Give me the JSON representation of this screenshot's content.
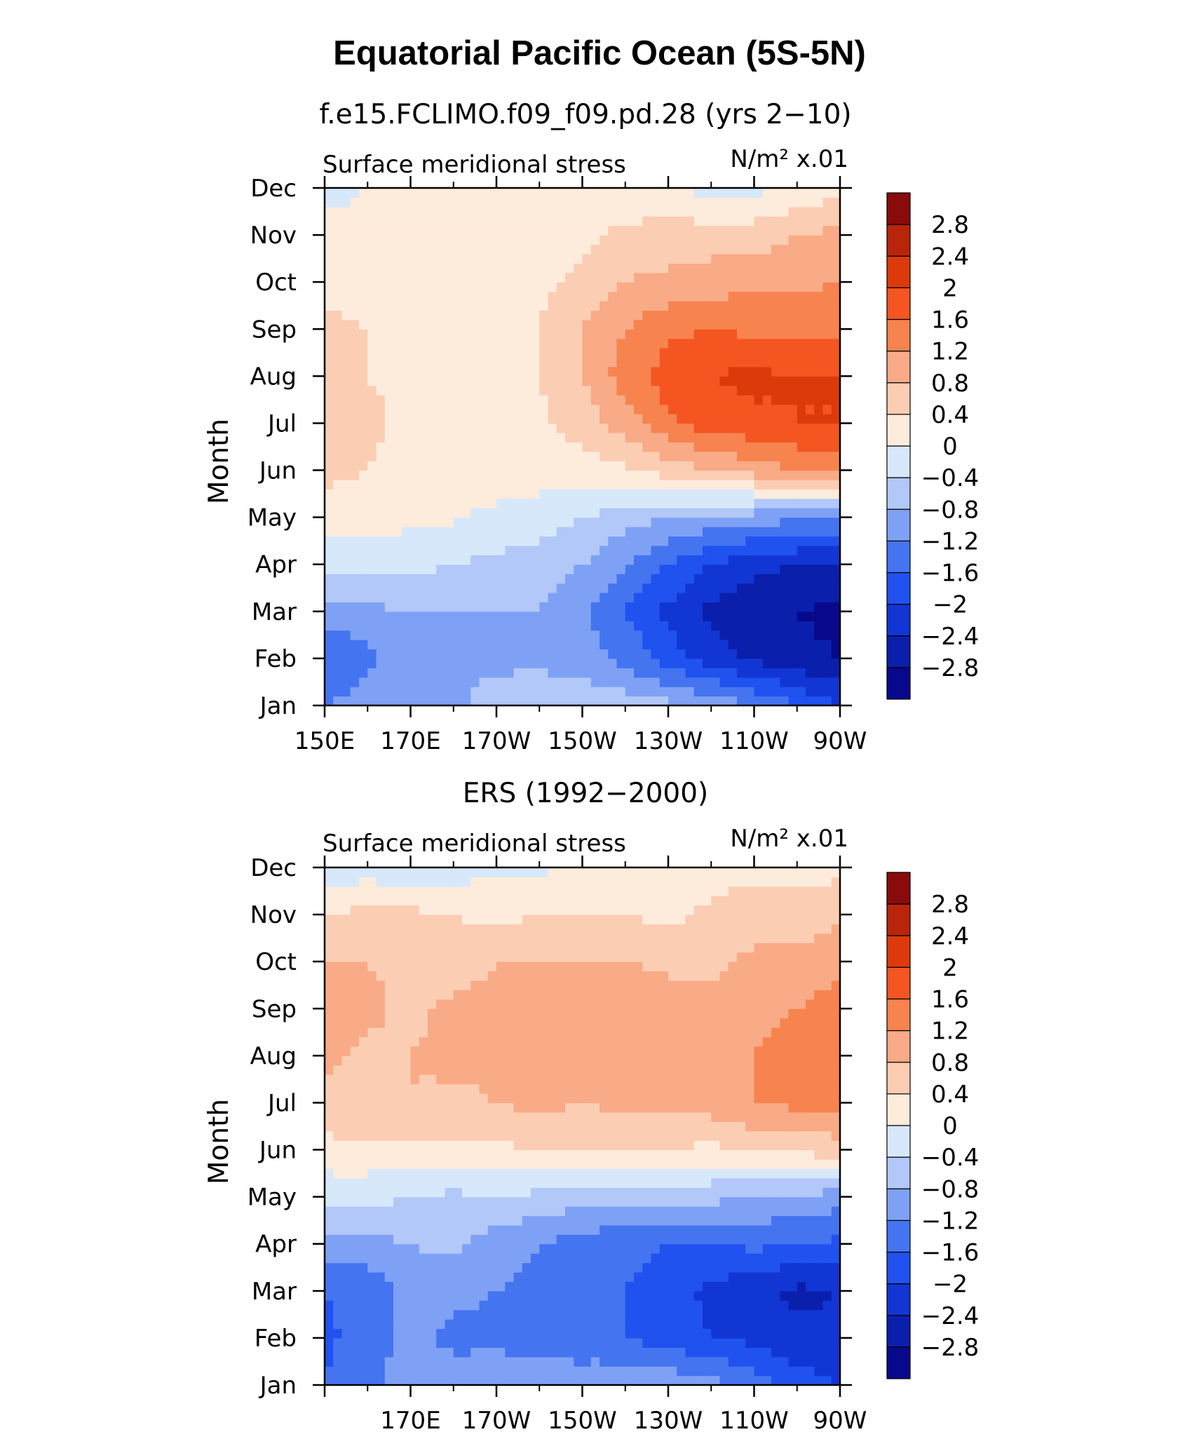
{
  "title": "Equatorial Pacific Ocean (5S-5N)",
  "colorbar": {
    "colors": [
      "#08088c",
      "#0b1fad",
      "#1236d4",
      "#1f52ef",
      "#4474f0",
      "#7ea1f5",
      "#b1c8f8",
      "#d7e8fb",
      "#fdebdc",
      "#fbcdb3",
      "#f9aa86",
      "#f7834f",
      "#f45521",
      "#dd3a0b",
      "#b8250b",
      "#890b0b"
    ],
    "labels": [
      "2.8",
      "2.4",
      "2",
      "1.6",
      "1.2",
      "0.8",
      "0.4",
      "0",
      "−0.4",
      "−0.8",
      "−1.2",
      "−1.6",
      "−2",
      "−2.4",
      "−2.8"
    ]
  },
  "panels": [
    {
      "subtitle": "f.e15.FCLIMO.f09_f09.pd.28 (yrs 2−10)",
      "left_string": "Surface meridional stress",
      "right_string": "N/m² x.01",
      "ylabel": "Month",
      "xticks": [
        "150E",
        "170E",
        "170W",
        "150W",
        "130W",
        "110W",
        "90W"
      ],
      "yticks": [
        "Jan",
        "Feb",
        "Mar",
        "Apr",
        "May",
        "Jun",
        "Jul",
        "Aug",
        "Sep",
        "Oct",
        "Nov",
        "Dec"
      ]
    },
    {
      "subtitle": "ERS (1992−2000)",
      "left_string": "Surface meridional stress",
      "right_string": "N/m² x.01",
      "ylabel": "Month",
      "xticks": [
        "170E",
        "170W",
        "150W",
        "130W",
        "110W",
        "90W"
      ],
      "yticks": [
        "Jan",
        "Feb",
        "Mar",
        "Apr",
        "May",
        "Jun",
        "Jul",
        "Aug",
        "Sep",
        "Oct",
        "Nov",
        "Dec"
      ]
    }
  ],
  "chart_data": [
    {
      "type": "heatmap",
      "title": "Equatorial Pacific Ocean (5S-5N)",
      "subtitle": "f.e15.FCLIMO.f09_f09.pd.28 (yrs 2−10)",
      "variable": "Surface meridional stress",
      "units": "N/m² x.01",
      "ylabel": "Month",
      "x": [
        150,
        160,
        170,
        180,
        190,
        200,
        210,
        220,
        230,
        240,
        250,
        260,
        270
      ],
      "xlim": [
        150,
        270
      ],
      "y": [
        "Jan",
        "Feb",
        "Mar",
        "Apr",
        "May",
        "Jun",
        "Jul",
        "Aug",
        "Sep",
        "Oct",
        "Nov",
        "Dec"
      ],
      "levels": [
        -2.8,
        -2.4,
        -2,
        -1.6,
        -1.2,
        -0.8,
        -0.4,
        0,
        0.4,
        0.8,
        1.2,
        1.6,
        2,
        2.4,
        2.8
      ],
      "z": [
        [
          -1.2,
          -1.0,
          -0.9,
          -0.9,
          -0.6,
          -0.5,
          -0.5,
          -0.6,
          -0.7,
          -0.9,
          -1.2,
          -1.6,
          -2.0
        ],
        [
          -1.6,
          -1.3,
          -1.0,
          -0.9,
          -0.9,
          -0.9,
          -1.0,
          -1.3,
          -1.8,
          -2.2,
          -2.5,
          -2.7,
          -2.8
        ],
        [
          -1.0,
          -0.9,
          -0.8,
          -0.8,
          -0.8,
          -0.8,
          -1.1,
          -1.6,
          -2.1,
          -2.5,
          -2.7,
          -2.8,
          -2.9
        ],
        [
          -0.2,
          -0.3,
          -0.3,
          -0.4,
          -0.5,
          -0.6,
          -0.8,
          -1.2,
          -1.6,
          -2.0,
          -2.3,
          -2.4,
          -2.5
        ],
        [
          0.2,
          0.2,
          0.1,
          0.05,
          -0.1,
          -0.2,
          -0.4,
          -0.6,
          -0.8,
          -0.9,
          -1.0,
          -1.1,
          -1.2
        ],
        [
          0.5,
          0.4,
          0.2,
          0.2,
          0.2,
          0.2,
          0.2,
          0.3,
          0.6,
          0.8,
          1.0,
          1.2,
          1.3
        ],
        [
          0.5,
          0.5,
          0.3,
          0.2,
          0.2,
          0.3,
          0.6,
          1.0,
          1.5,
          1.8,
          1.9,
          2.0,
          2.0
        ],
        [
          0.5,
          0.4,
          0.3,
          0.2,
          0.3,
          0.4,
          0.8,
          1.4,
          1.8,
          2.0,
          2.1,
          2.0,
          2.0
        ],
        [
          0.5,
          0.4,
          0.3,
          0.2,
          0.2,
          0.4,
          0.8,
          1.2,
          1.5,
          1.6,
          1.5,
          1.5,
          1.5
        ],
        [
          0.3,
          0.2,
          0.2,
          0.2,
          0.2,
          0.3,
          0.5,
          0.8,
          0.9,
          1.0,
          1.1,
          1.1,
          1.2
        ],
        [
          0.2,
          0.2,
          0.2,
          0.2,
          0.2,
          0.2,
          0.3,
          0.5,
          0.6,
          0.6,
          0.6,
          0.8,
          0.9
        ],
        [
          -0.2,
          0.0,
          0.1,
          0.1,
          0.1,
          0.1,
          0.1,
          0.1,
          0.0,
          -0.1,
          -0.1,
          0.1,
          0.3
        ]
      ]
    },
    {
      "type": "heatmap",
      "title": "Equatorial Pacific Ocean (5S-5N)",
      "subtitle": "ERS (1992−2000)",
      "variable": "Surface meridional stress",
      "units": "N/m² x.01",
      "ylabel": "Month",
      "x": [
        150,
        160,
        170,
        180,
        190,
        200,
        210,
        220,
        230,
        240,
        250,
        260,
        270
      ],
      "xlim": [
        150,
        270
      ],
      "y": [
        "Jan",
        "Feb",
        "Mar",
        "Apr",
        "May",
        "Jun",
        "Jul",
        "Aug",
        "Sep",
        "Oct",
        "Nov",
        "Dec"
      ],
      "levels": [
        -2.8,
        -2.4,
        -2,
        -1.6,
        -1.2,
        -0.8,
        -0.4,
        0,
        0.4,
        0.8,
        1.2,
        1.6,
        2,
        2.4,
        2.8
      ],
      "z": [
        [
          -1.6,
          -1.3,
          -1.0,
          -1.0,
          -0.9,
          -1.0,
          -0.9,
          -0.8,
          -0.9,
          -1.0,
          -1.4,
          -1.8,
          -2.0
        ],
        [
          -1.7,
          -1.4,
          -1.1,
          -1.3,
          -1.3,
          -1.4,
          -1.5,
          -1.6,
          -1.8,
          -2.0,
          -2.1,
          -2.3,
          -2.3
        ],
        [
          -1.6,
          -1.5,
          -1.0,
          -1.1,
          -1.2,
          -1.3,
          -1.5,
          -1.6,
          -1.8,
          -2.1,
          -2.3,
          -2.5,
          -2.4
        ],
        [
          -0.9,
          -0.9,
          -0.8,
          -0.7,
          -1.0,
          -1.2,
          -1.4,
          -1.5,
          -1.6,
          -1.6,
          -1.5,
          -1.6,
          -1.7
        ],
        [
          -0.3,
          -0.3,
          -0.4,
          -0.5,
          -0.4,
          -0.5,
          -0.6,
          -0.7,
          -0.6,
          -0.7,
          -0.8,
          -0.9,
          -1.0
        ],
        [
          0.3,
          0.3,
          0.3,
          0.3,
          0.3,
          0.4,
          0.5,
          0.4,
          0.4,
          0.3,
          0.5,
          0.5,
          0.6
        ],
        [
          0.6,
          0.8,
          0.8,
          0.7,
          0.8,
          0.9,
          0.8,
          0.9,
          0.9,
          1.0,
          1.2,
          1.3,
          1.3
        ],
        [
          0.9,
          0.7,
          0.8,
          0.9,
          0.9,
          1.0,
          0.9,
          1.0,
          0.9,
          0.9,
          1.2,
          1.3,
          1.3
        ],
        [
          1.2,
          0.9,
          0.7,
          0.9,
          0.9,
          1.0,
          1.0,
          1.1,
          1.0,
          0.9,
          1.1,
          1.2,
          1.4
        ],
        [
          0.8,
          0.8,
          0.7,
          0.6,
          0.8,
          0.8,
          0.8,
          0.8,
          0.7,
          0.7,
          0.9,
          0.9,
          1.1
        ],
        [
          0.4,
          0.5,
          0.5,
          0.4,
          0.3,
          0.4,
          0.4,
          0.4,
          0.3,
          0.5,
          0.6,
          0.6,
          0.7
        ],
        [
          -0.3,
          -0.2,
          -0.3,
          -0.2,
          -0.1,
          -0.1,
          0.1,
          0.2,
          0.2,
          0.2,
          0.3,
          0.2,
          0.3
        ]
      ]
    }
  ]
}
